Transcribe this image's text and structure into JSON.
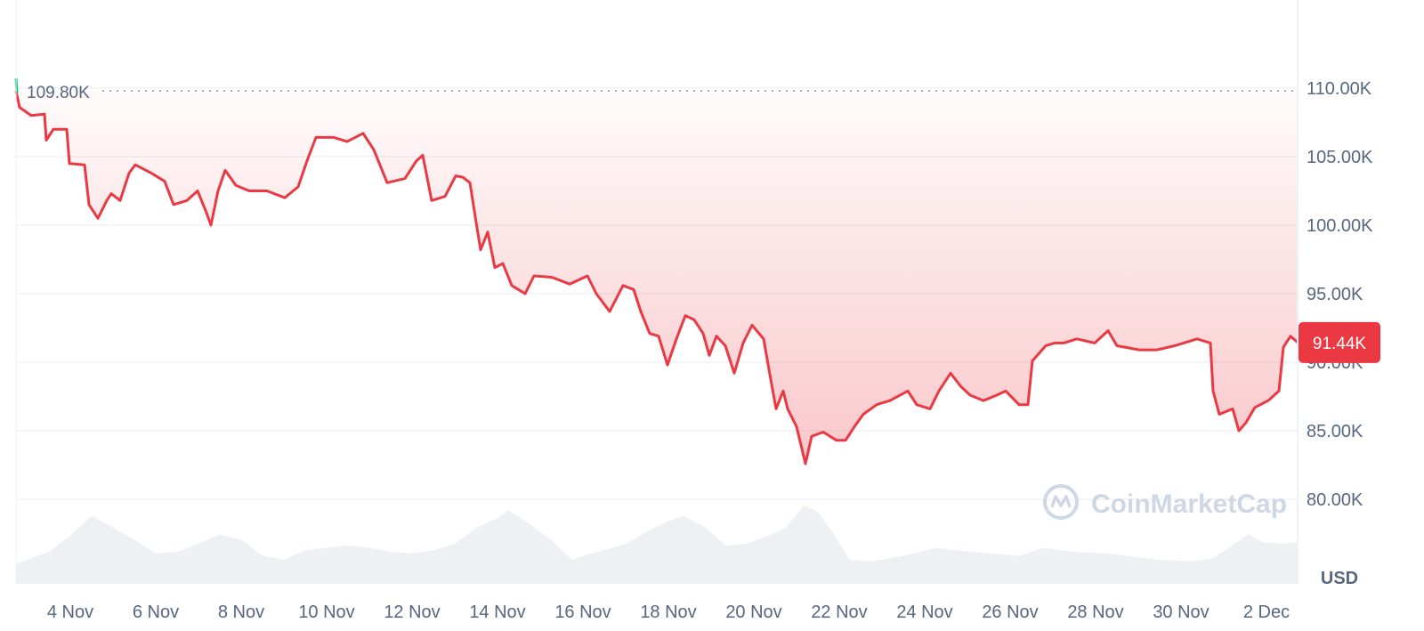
{
  "chart_data": {
    "type": "line",
    "currency_label": "USD",
    "open_label": "109.80K",
    "open_value": 109.8,
    "last_label": "91.44K",
    "last_value": 91.44,
    "watermark": "CoinMarketCap",
    "ylim": [
      76,
      114
    ],
    "y_ticks": [
      {
        "value": 80,
        "label": "80.00K"
      },
      {
        "value": 85,
        "label": "85.00K"
      },
      {
        "value": 90,
        "label": "90.00K"
      },
      {
        "value": 95,
        "label": "95.00K"
      },
      {
        "value": 100,
        "label": "100.00K"
      },
      {
        "value": 105,
        "label": "105.00K"
      },
      {
        "value": 110,
        "label": "110.00K"
      }
    ],
    "x_ticks": [
      {
        "value": "11-04 00:00",
        "label": "4 Nov"
      },
      {
        "value": "11-06 00:00",
        "label": "6 Nov"
      },
      {
        "value": "11-08 00:00",
        "label": "8 Nov"
      },
      {
        "value": "11-10 00:00",
        "label": "10 Nov"
      },
      {
        "value": "11-12 00:00",
        "label": "12 Nov"
      },
      {
        "value": "11-14 00:00",
        "label": "14 Nov"
      },
      {
        "value": "11-16 00:00",
        "label": "16 Nov"
      },
      {
        "value": "11-18 00:00",
        "label": "18 Nov"
      },
      {
        "value": "11-20 00:00",
        "label": "20 Nov"
      },
      {
        "value": "11-22 00:00",
        "label": "22 Nov"
      },
      {
        "value": "11-24 00:00",
        "label": "24 Nov"
      },
      {
        "value": "11-26 00:00",
        "label": "26 Nov"
      },
      {
        "value": "11-28 00:00",
        "label": "28 Nov"
      },
      {
        "value": "11-30 00:00",
        "label": "30 Nov"
      },
      {
        "value": "12-02 00:00",
        "label": "2 Dec"
      }
    ],
    "grid": "horizontal",
    "colors": {
      "line": "#ea3943",
      "start": "#16c784",
      "volume": "#eef0f4",
      "axis_text": "#58667e",
      "grid": "#eff2f5"
    },
    "series": [
      {
        "points": [
          [
            "11-02 17:30",
            109.8
          ],
          [
            "11-02 19:30",
            108.6
          ],
          [
            "11-03 02:00",
            108.0
          ],
          [
            "11-03 09:30",
            108.1
          ],
          [
            "11-03 10:30",
            106.2
          ],
          [
            "11-03 14:30",
            107.0
          ],
          [
            "11-03 22:00",
            107.0
          ],
          [
            "11-03 23:30",
            104.5
          ],
          [
            "11-04 08:00",
            104.4
          ],
          [
            "11-04 10:30",
            101.5
          ],
          [
            "11-04 15:30",
            100.5
          ],
          [
            "11-04 20:30",
            101.8
          ],
          [
            "11-04 23:00",
            102.3
          ],
          [
            "11-05 04:00",
            101.8
          ],
          [
            "11-05 09:00",
            103.8
          ],
          [
            "11-05 12:30",
            104.4
          ],
          [
            "11-05 21:30",
            103.8
          ],
          [
            "11-06 05:00",
            103.2
          ],
          [
            "11-06 10:00",
            101.5
          ],
          [
            "11-06 17:30",
            101.8
          ],
          [
            "11-06 23:30",
            102.5
          ],
          [
            "11-07 04:30",
            100.9
          ],
          [
            "11-07 07:00",
            100.0
          ],
          [
            "11-07 11:00",
            102.5
          ],
          [
            "11-07 15:00",
            104.0
          ],
          [
            "11-07 21:00",
            102.9
          ],
          [
            "11-08 04:30",
            102.5
          ],
          [
            "11-08 14:30",
            102.5
          ],
          [
            "11-09 00:30",
            102.0
          ],
          [
            "11-09 08:00",
            102.8
          ],
          [
            "11-09 13:00",
            104.7
          ],
          [
            "11-09 18:00",
            106.4
          ],
          [
            "11-10 04:00",
            106.4
          ],
          [
            "11-10 11:30",
            106.1
          ],
          [
            "11-10 20:30",
            106.7
          ],
          [
            "11-11 02:30",
            105.5
          ],
          [
            "11-11 10:00",
            103.1
          ],
          [
            "11-11 20:00",
            103.4
          ],
          [
            "11-12 02:30",
            104.7
          ],
          [
            "11-12 06:00",
            105.1
          ],
          [
            "11-12 11:00",
            101.8
          ],
          [
            "11-12 18:30",
            102.1
          ],
          [
            "11-13 00:30",
            103.6
          ],
          [
            "11-13 04:30",
            103.5
          ],
          [
            "11-13 08:30",
            103.1
          ],
          [
            "11-13 12:00",
            100.2
          ],
          [
            "11-13 14:30",
            98.2
          ],
          [
            "11-13 18:30",
            99.5
          ],
          [
            "11-13 22:30",
            96.9
          ],
          [
            "11-14 03:00",
            97.2
          ],
          [
            "11-14 08:00",
            95.6
          ],
          [
            "11-14 15:30",
            95.0
          ],
          [
            "11-14 20:30",
            96.3
          ],
          [
            "11-15 06:30",
            96.2
          ],
          [
            "11-15 16:30",
            95.7
          ],
          [
            "11-16 02:30",
            96.3
          ],
          [
            "11-16 07:30",
            95.0
          ],
          [
            "11-16 15:00",
            93.7
          ],
          [
            "11-16 22:30",
            95.6
          ],
          [
            "11-17 04:30",
            95.3
          ],
          [
            "11-17 08:30",
            93.7
          ],
          [
            "11-17 13:30",
            92.1
          ],
          [
            "11-17 18:30",
            91.9
          ],
          [
            "11-17 23:30",
            89.8
          ],
          [
            "11-18 04:30",
            91.7
          ],
          [
            "11-18 09:30",
            93.4
          ],
          [
            "11-18 14:30",
            93.1
          ],
          [
            "11-18 19:30",
            92.1
          ],
          [
            "11-18 23:00",
            90.5
          ],
          [
            "11-19 03:00",
            91.9
          ],
          [
            "11-19 08:00",
            91.2
          ],
          [
            "11-19 13:00",
            89.2
          ],
          [
            "11-19 18:00",
            91.4
          ],
          [
            "11-19 23:00",
            92.7
          ],
          [
            "11-20 05:30",
            91.7
          ],
          [
            "11-20 09:00",
            89.1
          ],
          [
            "11-20 12:30",
            86.6
          ],
          [
            "11-20 16:30",
            87.9
          ],
          [
            "11-20 19:00",
            86.6
          ],
          [
            "11-21 00:00",
            85.3
          ],
          [
            "11-21 05:00",
            82.6
          ],
          [
            "11-21 08:30",
            84.6
          ],
          [
            "11-21 15:00",
            84.9
          ],
          [
            "11-21 22:30",
            84.3
          ],
          [
            "11-22 03:30",
            84.3
          ],
          [
            "11-22 08:30",
            85.3
          ],
          [
            "11-22 13:30",
            86.2
          ],
          [
            "11-22 21:00",
            86.9
          ],
          [
            "11-23 04:30",
            87.2
          ],
          [
            "11-23 14:30",
            87.9
          ],
          [
            "11-23 19:30",
            86.9
          ],
          [
            "11-24 03:00",
            86.6
          ],
          [
            "11-24 08:00",
            87.9
          ],
          [
            "11-24 14:30",
            89.2
          ],
          [
            "11-24 20:30",
            88.2
          ],
          [
            "11-25 01:30",
            87.6
          ],
          [
            "11-25 09:00",
            87.2
          ],
          [
            "11-25 16:30",
            87.6
          ],
          [
            "11-25 21:30",
            87.9
          ],
          [
            "11-26 05:00",
            86.9
          ],
          [
            "11-26 10:00",
            86.9
          ],
          [
            "11-26 12:30",
            90.1
          ],
          [
            "11-26 20:00",
            91.2
          ],
          [
            "11-27 01:00",
            91.4
          ],
          [
            "11-27 06:00",
            91.4
          ],
          [
            "11-27 13:30",
            91.7
          ],
          [
            "11-27 23:30",
            91.4
          ],
          [
            "11-28 07:00",
            92.3
          ],
          [
            "11-28 12:00",
            91.2
          ],
          [
            "11-29 00:30",
            90.9
          ],
          [
            "11-29 10:30",
            90.9
          ],
          [
            "11-29 20:30",
            91.2
          ],
          [
            "11-30 09:00",
            91.7
          ],
          [
            "11-30 16:30",
            91.4
          ],
          [
            "11-30 18:00",
            87.9
          ],
          [
            "11-30 21:30",
            86.2
          ],
          [
            "12-01 05:00",
            86.6
          ],
          [
            "12-01 08:30",
            85.0
          ],
          [
            "12-01 12:30",
            85.6
          ],
          [
            "12-01 17:30",
            86.7
          ],
          [
            "12-02 01:00",
            87.2
          ],
          [
            "12-02 07:00",
            87.9
          ],
          [
            "12-02 09:30",
            91.1
          ],
          [
            "12-02 13:30",
            91.9
          ],
          [
            "12-02 17:30",
            91.44
          ]
        ]
      }
    ],
    "volume_relative": [
      [
        "11-02 17:30",
        0.25
      ],
      [
        "11-03 12:00",
        0.4
      ],
      [
        "11-04 00:00",
        0.6
      ],
      [
        "11-04 12:00",
        0.85
      ],
      [
        "11-05 00:00",
        0.7
      ],
      [
        "11-05 12:00",
        0.55
      ],
      [
        "11-06 00:00",
        0.38
      ],
      [
        "11-06 12:00",
        0.4
      ],
      [
        "11-07 00:00",
        0.5
      ],
      [
        "11-07 12:00",
        0.62
      ],
      [
        "11-08 00:00",
        0.55
      ],
      [
        "11-08 12:00",
        0.35
      ],
      [
        "11-09 00:00",
        0.3
      ],
      [
        "11-09 12:00",
        0.42
      ],
      [
        "11-10 00:00",
        0.45
      ],
      [
        "11-10 12:00",
        0.48
      ],
      [
        "11-11 00:00",
        0.45
      ],
      [
        "11-11 12:00",
        0.4
      ],
      [
        "11-12 00:00",
        0.38
      ],
      [
        "11-12 12:00",
        0.42
      ],
      [
        "11-13 00:00",
        0.5
      ],
      [
        "11-13 12:00",
        0.7
      ],
      [
        "11-14 00:00",
        0.82
      ],
      [
        "11-14 06:00",
        0.92
      ],
      [
        "11-14 18:00",
        0.75
      ],
      [
        "11-15 06:00",
        0.55
      ],
      [
        "11-15 18:00",
        0.3
      ],
      [
        "11-16 00:00",
        0.35
      ],
      [
        "11-16 12:00",
        0.42
      ],
      [
        "11-17 00:00",
        0.5
      ],
      [
        "11-17 12:00",
        0.65
      ],
      [
        "11-18 00:00",
        0.78
      ],
      [
        "11-18 08:00",
        0.85
      ],
      [
        "11-18 20:00",
        0.72
      ],
      [
        "11-19 08:00",
        0.48
      ],
      [
        "11-19 20:00",
        0.5
      ],
      [
        "11-20 08:00",
        0.6
      ],
      [
        "11-20 18:00",
        0.7
      ],
      [
        "11-21 04:00",
        0.98
      ],
      [
        "11-21 12:00",
        0.9
      ],
      [
        "11-21 20:00",
        0.65
      ],
      [
        "11-22 06:00",
        0.3
      ],
      [
        "11-22 18:00",
        0.28
      ],
      [
        "11-23 12:00",
        0.35
      ],
      [
        "11-24 06:00",
        0.45
      ],
      [
        "11-24 18:00",
        0.42
      ],
      [
        "11-25 12:00",
        0.38
      ],
      [
        "11-26 06:00",
        0.35
      ],
      [
        "11-26 18:00",
        0.45
      ],
      [
        "11-27 12:00",
        0.4
      ],
      [
        "11-28 06:00",
        0.38
      ],
      [
        "11-28 18:00",
        0.35
      ],
      [
        "11-29 12:00",
        0.3
      ],
      [
        "11-30 06:00",
        0.28
      ],
      [
        "11-30 18:00",
        0.32
      ],
      [
        "12-01 06:00",
        0.5
      ],
      [
        "12-01 14:00",
        0.62
      ],
      [
        "12-01 22:00",
        0.52
      ],
      [
        "12-02 10:00",
        0.5
      ],
      [
        "12-02 17:30",
        0.52
      ]
    ]
  }
}
